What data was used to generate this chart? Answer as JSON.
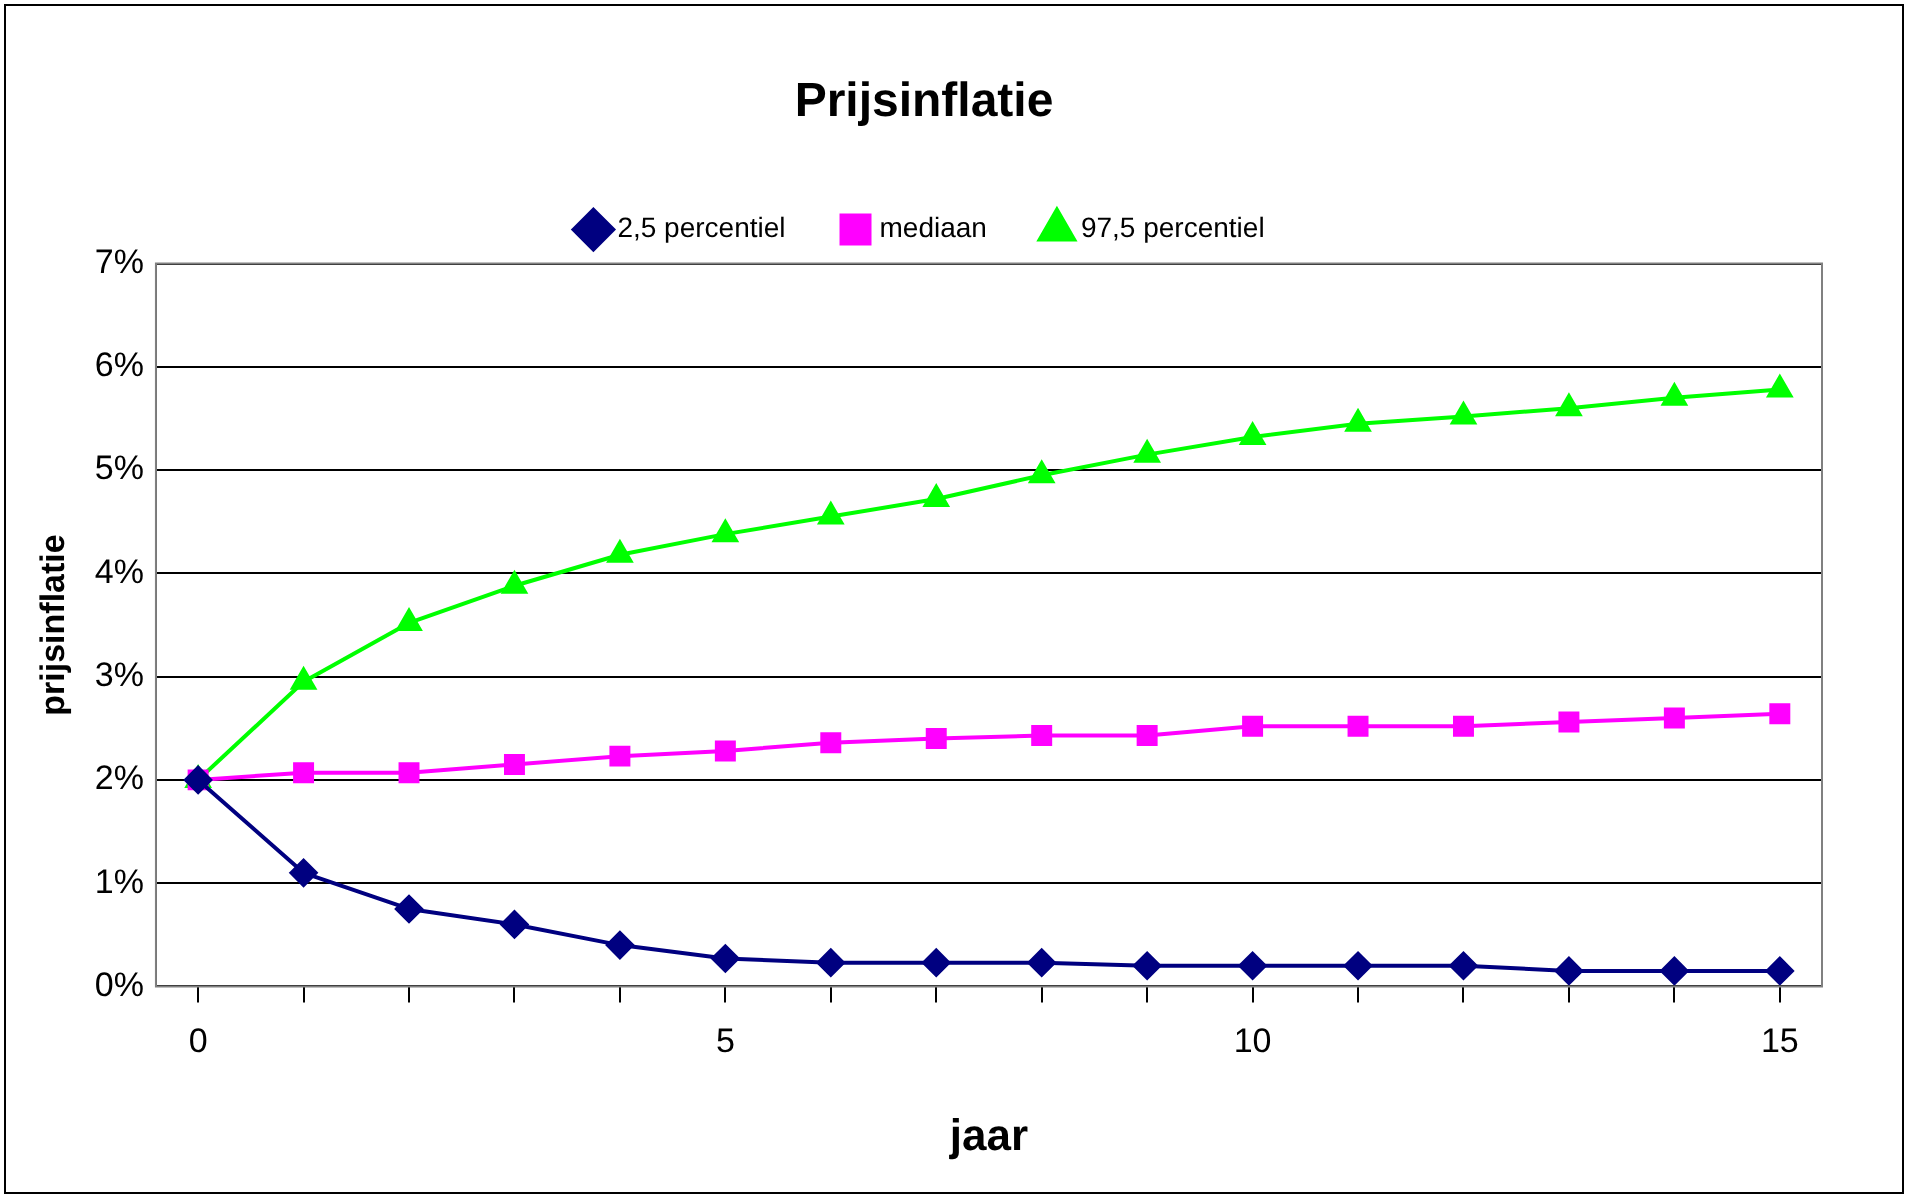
{
  "chart_data": {
    "type": "line",
    "title": "Prijsinflatie",
    "xlabel": "jaar",
    "ylabel": "prijsinflatie",
    "x": [
      0,
      1,
      2,
      3,
      4,
      5,
      6,
      7,
      8,
      9,
      10,
      11,
      12,
      13,
      14,
      15
    ],
    "series": [
      {
        "name": "2,5 percentiel",
        "color": "#000080",
        "marker": "diamond",
        "values": [
          2.0,
          1.1,
          0.75,
          0.6,
          0.4,
          0.27,
          0.23,
          0.23,
          0.23,
          0.2,
          0.2,
          0.2,
          0.2,
          0.15,
          0.15,
          0.15
        ]
      },
      {
        "name": "mediaan",
        "color": "#ff00ff",
        "marker": "square",
        "values": [
          2.0,
          2.07,
          2.07,
          2.15,
          2.23,
          2.28,
          2.36,
          2.4,
          2.43,
          2.43,
          2.52,
          2.52,
          2.52,
          2.56,
          2.6,
          2.64
        ]
      },
      {
        "name": "97,5 percentiel",
        "color": "#00ff00",
        "marker": "triangle",
        "values": [
          2.0,
          2.95,
          3.52,
          3.88,
          4.18,
          4.38,
          4.55,
          4.72,
          4.95,
          5.15,
          5.32,
          5.45,
          5.52,
          5.6,
          5.7,
          5.78
        ]
      }
    ],
    "xlim": [
      -0.4,
      15.4
    ],
    "xticks": [
      0,
      {
        "value": 1,
        "label": null
      },
      {
        "value": 2,
        "label": null
      },
      {
        "value": 3,
        "label": null
      },
      {
        "value": 4,
        "label": null
      },
      5,
      {
        "value": 6,
        "label": null
      },
      {
        "value": 7,
        "label": null
      },
      {
        "value": 8,
        "label": null
      },
      {
        "value": 9,
        "label": null
      },
      10,
      {
        "value": 11,
        "label": null
      },
      {
        "value": 12,
        "label": null
      },
      {
        "value": 13,
        "label": null
      },
      {
        "value": 14,
        "label": null
      },
      15
    ],
    "ylim": [
      0,
      7
    ],
    "yticks": [
      {
        "value": 0,
        "label": "0%"
      },
      {
        "value": 1,
        "label": "1%"
      },
      {
        "value": 2,
        "label": "2%"
      },
      {
        "value": 3,
        "label": "3%"
      },
      {
        "value": 4,
        "label": "4%"
      },
      {
        "value": 5,
        "label": "5%"
      },
      {
        "value": 6,
        "label": "6%"
      },
      {
        "value": 7,
        "label": "7%"
      }
    ],
    "grid": "y",
    "legend": "top",
    "line_style": "solid"
  }
}
